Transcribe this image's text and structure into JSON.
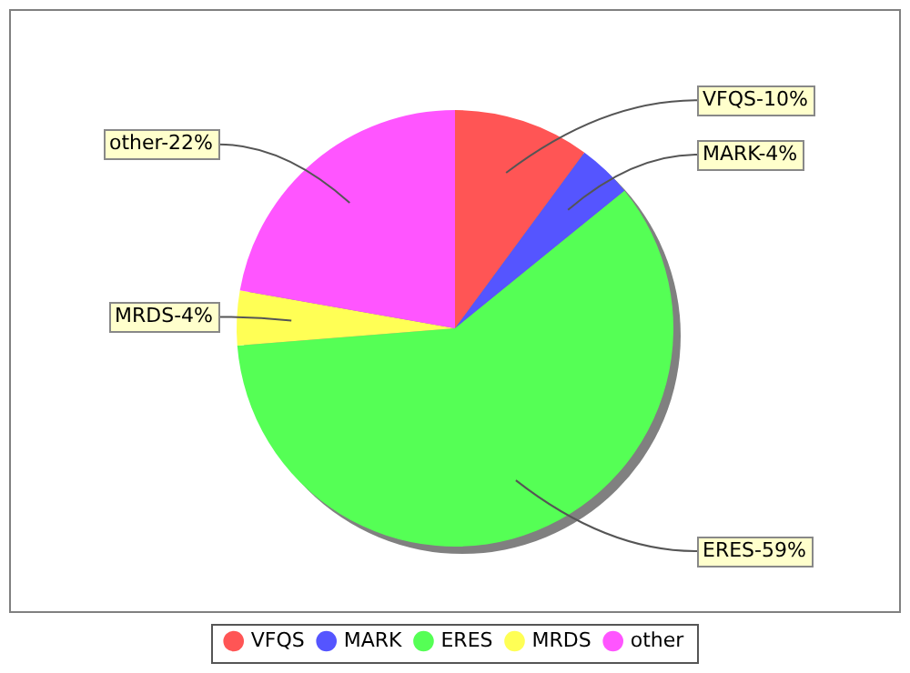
{
  "chart_data": {
    "type": "pie",
    "categories": [
      "VFQS",
      "MARK",
      "ERES",
      "MRDS",
      "other"
    ],
    "values": [
      10,
      4,
      59,
      4,
      22
    ],
    "colors": [
      "#ff5555",
      "#5555ff",
      "#55ff55",
      "#ffff55",
      "#ff55ff"
    ],
    "value_labels": [
      "VFQS-10%",
      "MARK-4%",
      "ERES-59%",
      "MRDS-4%",
      "other-22%"
    ],
    "legend": "bottom"
  }
}
